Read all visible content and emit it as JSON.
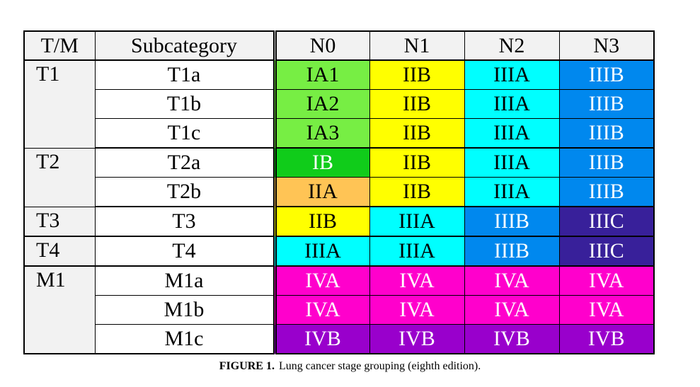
{
  "header": {
    "tm": "T/M",
    "subcategory": "Subcategory",
    "n_columns": [
      "N0",
      "N1",
      "N2",
      "N3"
    ]
  },
  "colors": {
    "IA": "#77ee44",
    "IB": "#10cc1a",
    "IIA": "#ffc455",
    "IIB": "#ffff00",
    "IIIA": "#00ffff",
    "IIIB": "#0088ee",
    "IIIC": "#38209a",
    "IVA": "#ff00cc",
    "IVB": "#9900cc"
  },
  "groups": [
    {
      "tm": "T1",
      "rows": [
        {
          "sub": "T1a",
          "cells": [
            {
              "text": "IA1",
              "color": "IA",
              "light": false
            },
            {
              "text": "IIB",
              "color": "IIB",
              "light": false
            },
            {
              "text": "IIIA",
              "color": "IIIA",
              "light": false
            },
            {
              "text": "IIIB",
              "color": "IIIB",
              "light": true
            }
          ]
        },
        {
          "sub": "T1b",
          "cells": [
            {
              "text": "IA2",
              "color": "IA",
              "light": false
            },
            {
              "text": "IIB",
              "color": "IIB",
              "light": false
            },
            {
              "text": "IIIA",
              "color": "IIIA",
              "light": false
            },
            {
              "text": "IIIB",
              "color": "IIIB",
              "light": true
            }
          ]
        },
        {
          "sub": "T1c",
          "cells": [
            {
              "text": "IA3",
              "color": "IA",
              "light": false
            },
            {
              "text": "IIB",
              "color": "IIB",
              "light": false
            },
            {
              "text": "IIIA",
              "color": "IIIA",
              "light": false
            },
            {
              "text": "IIIB",
              "color": "IIIB",
              "light": true
            }
          ]
        }
      ]
    },
    {
      "tm": "T2",
      "rows": [
        {
          "sub": "T2a",
          "cells": [
            {
              "text": "IB",
              "color": "IB",
              "light": true
            },
            {
              "text": "IIB",
              "color": "IIB",
              "light": false
            },
            {
              "text": "IIIA",
              "color": "IIIA",
              "light": false
            },
            {
              "text": "IIIB",
              "color": "IIIB",
              "light": true
            }
          ]
        },
        {
          "sub": "T2b",
          "cells": [
            {
              "text": "IIA",
              "color": "IIA",
              "light": false
            },
            {
              "text": "IIB",
              "color": "IIB",
              "light": false
            },
            {
              "text": "IIIA",
              "color": "IIIA",
              "light": false
            },
            {
              "text": "IIIB",
              "color": "IIIB",
              "light": true
            }
          ]
        }
      ]
    },
    {
      "tm": "T3",
      "rows": [
        {
          "sub": "T3",
          "cells": [
            {
              "text": "IIB",
              "color": "IIB",
              "light": false
            },
            {
              "text": "IIIA",
              "color": "IIIA",
              "light": false
            },
            {
              "text": "IIIB",
              "color": "IIIB",
              "light": true
            },
            {
              "text": "IIIC",
              "color": "IIIC",
              "light": true
            }
          ]
        }
      ]
    },
    {
      "tm": "T4",
      "rows": [
        {
          "sub": "T4",
          "cells": [
            {
              "text": "IIIA",
              "color": "IIIA",
              "light": false
            },
            {
              "text": "IIIA",
              "color": "IIIA",
              "light": false
            },
            {
              "text": "IIIB",
              "color": "IIIB",
              "light": true
            },
            {
              "text": "IIIC",
              "color": "IIIC",
              "light": true
            }
          ]
        }
      ]
    },
    {
      "tm": "M1",
      "rows": [
        {
          "sub": "M1a",
          "cells": [
            {
              "text": "IVA",
              "color": "IVA",
              "light": true
            },
            {
              "text": "IVA",
              "color": "IVA",
              "light": true
            },
            {
              "text": "IVA",
              "color": "IVA",
              "light": true
            },
            {
              "text": "IVA",
              "color": "IVA",
              "light": true
            }
          ]
        },
        {
          "sub": "M1b",
          "cells": [
            {
              "text": "IVA",
              "color": "IVA",
              "light": true
            },
            {
              "text": "IVA",
              "color": "IVA",
              "light": true
            },
            {
              "text": "IVA",
              "color": "IVA",
              "light": true
            },
            {
              "text": "IVA",
              "color": "IVA",
              "light": true
            }
          ]
        },
        {
          "sub": "M1c",
          "cells": [
            {
              "text": "IVB",
              "color": "IVB",
              "light": true
            },
            {
              "text": "IVB",
              "color": "IVB",
              "light": true
            },
            {
              "text": "IVB",
              "color": "IVB",
              "light": true
            },
            {
              "text": "IVB",
              "color": "IVB",
              "light": true
            }
          ]
        }
      ]
    }
  ],
  "caption": {
    "label": "FIGURE 1.",
    "text": "Lung cancer stage grouping (eighth edition)."
  }
}
